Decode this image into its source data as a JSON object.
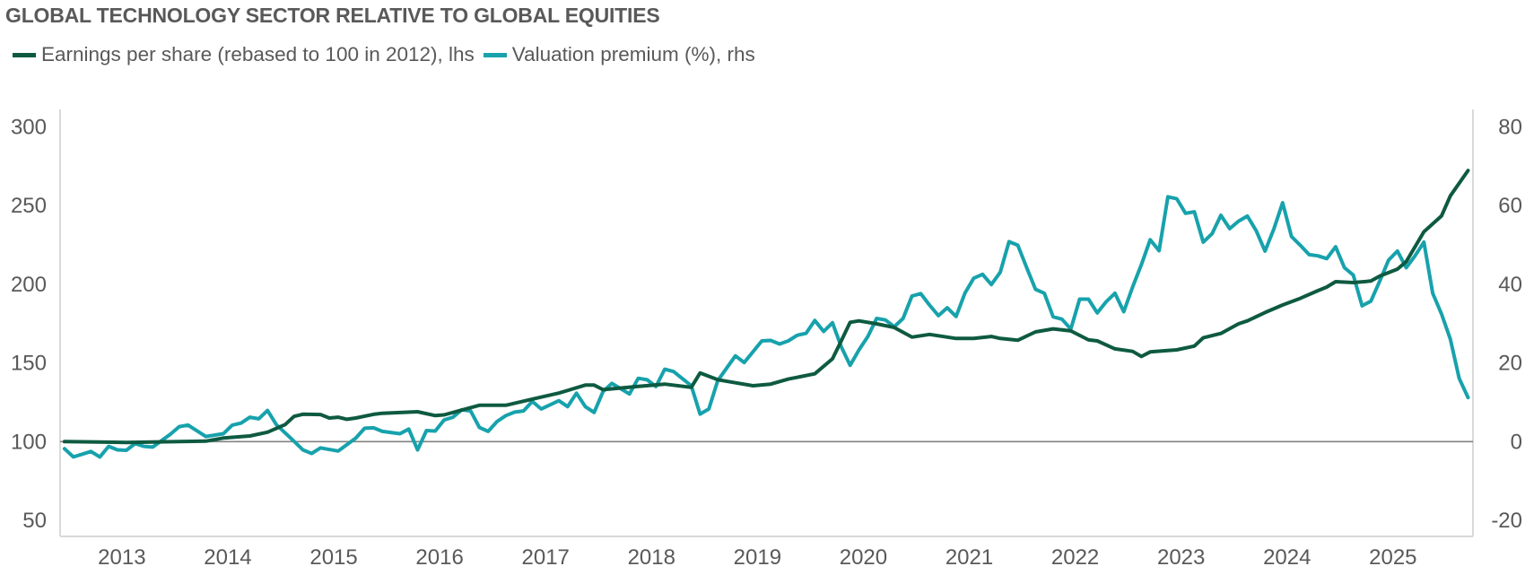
{
  "chart_data": {
    "type": "line",
    "title": "GLOBAL TECHNOLOGY SECTOR RELATIVE TO GLOBAL EQUITIES",
    "xlabel": "",
    "ylabel": "",
    "y2label": "",
    "x_tick_labels": [
      "2013",
      "2014",
      "2015",
      "2016",
      "2017",
      "2018",
      "2019",
      "2020",
      "2021",
      "2022",
      "2023",
      "2024",
      "2025"
    ],
    "ylim": [
      50,
      300
    ],
    "y_ticks": [
      50,
      100,
      150,
      200,
      250,
      300
    ],
    "y2lim": [
      -20,
      80
    ],
    "y2_ticks": [
      -20,
      0,
      20,
      40,
      60,
      80
    ],
    "grid": false,
    "reference_line": {
      "axis": "y",
      "value": 100,
      "color": "#808080"
    },
    "legend_position": "top-left",
    "series": [
      {
        "name": "Earnings per share (rebased to 100 in 2012), lhs",
        "axis": "left",
        "color": "#0e5a41",
        "points": [
          [
            "2012-06",
            100
          ],
          [
            "2013-01",
            99.5
          ],
          [
            "2013-10",
            100.3
          ],
          [
            "2013-12",
            102.3
          ],
          [
            "2014-03",
            103.6
          ],
          [
            "2014-05",
            106
          ],
          [
            "2014-07",
            110.8
          ],
          [
            "2014-08",
            116
          ],
          [
            "2014-09",
            117.4
          ],
          [
            "2014-11",
            117.2
          ],
          [
            "2014-12",
            115
          ],
          [
            "2015-01",
            115.5
          ],
          [
            "2015-02",
            114.2
          ],
          [
            "2015-03",
            115
          ],
          [
            "2015-05",
            117.3
          ],
          [
            "2015-06",
            118
          ],
          [
            "2015-10",
            119
          ],
          [
            "2015-12",
            116.5
          ],
          [
            "2016-01",
            117
          ],
          [
            "2016-05",
            123.1
          ],
          [
            "2016-08",
            123.1
          ],
          [
            "2016-11",
            127
          ],
          [
            "2017-02",
            130.8
          ],
          [
            "2017-05",
            135.9
          ],
          [
            "2017-06",
            135.9
          ],
          [
            "2017-07",
            133
          ],
          [
            "2017-11",
            135.1
          ],
          [
            "2018-02",
            136.5
          ],
          [
            "2018-05",
            134.5
          ],
          [
            "2018-06",
            143.6
          ],
          [
            "2018-08",
            139.3
          ],
          [
            "2018-10",
            137.4
          ],
          [
            "2018-12",
            135.5
          ],
          [
            "2019-02",
            136.5
          ],
          [
            "2019-04",
            139.7
          ],
          [
            "2019-07",
            143.1
          ],
          [
            "2019-09",
            152.6
          ],
          [
            "2019-10",
            164
          ],
          [
            "2019-11",
            175.8
          ],
          [
            "2019-12",
            176.7
          ],
          [
            "2020-02",
            174.8
          ],
          [
            "2020-04",
            172.5
          ],
          [
            "2020-06",
            166.4
          ],
          [
            "2020-08",
            168.1
          ],
          [
            "2020-11",
            165.5
          ],
          [
            "2021-01",
            165.5
          ],
          [
            "2021-03",
            166.8
          ],
          [
            "2021-04",
            165.5
          ],
          [
            "2021-06",
            164.4
          ],
          [
            "2021-08",
            169.7
          ],
          [
            "2021-10",
            171.6
          ],
          [
            "2021-12",
            170.3
          ],
          [
            "2022-02",
            164.6
          ],
          [
            "2022-03",
            164
          ],
          [
            "2022-05",
            158.9
          ],
          [
            "2022-07",
            157.3
          ],
          [
            "2022-08",
            154.1
          ],
          [
            "2022-09",
            157
          ],
          [
            "2022-12",
            158.3
          ],
          [
            "2023-02",
            160.7
          ],
          [
            "2023-03",
            165.9
          ],
          [
            "2023-05",
            168.7
          ],
          [
            "2023-07",
            174.8
          ],
          [
            "2023-08",
            176.7
          ],
          [
            "2023-10",
            182
          ],
          [
            "2023-12",
            186.8
          ],
          [
            "2024-02",
            191
          ],
          [
            "2024-04",
            195.9
          ],
          [
            "2024-05",
            198.2
          ],
          [
            "2024-06",
            201.6
          ],
          [
            "2024-08",
            201
          ],
          [
            "2024-10",
            202
          ],
          [
            "2024-11",
            205.2
          ],
          [
            "2025-01",
            209.6
          ],
          [
            "2025-02",
            214.3
          ],
          [
            "2025-04",
            233.3
          ],
          [
            "2025-06",
            243.4
          ],
          [
            "2025-07",
            256.1
          ],
          [
            "2025-09",
            272.2
          ]
        ]
      },
      {
        "name": "Valuation premium (%), rhs",
        "axis": "right",
        "color": "#17a2ac",
        "points": [
          [
            "2012-06",
            -1.8
          ],
          [
            "2012-07",
            -3.9
          ],
          [
            "2012-09",
            -2.5
          ],
          [
            "2012-10",
            -3.9
          ],
          [
            "2012-11",
            -1.2
          ],
          [
            "2012-12",
            -2.1
          ],
          [
            "2013-01",
            -2.2
          ],
          [
            "2013-02",
            -0.5
          ],
          [
            "2013-03",
            -1.2
          ],
          [
            "2013-04",
            -1.4
          ],
          [
            "2013-06",
            1.9
          ],
          [
            "2013-07",
            3.8
          ],
          [
            "2013-08",
            4.2
          ],
          [
            "2013-10",
            1.3
          ],
          [
            "2013-12",
            2.0
          ],
          [
            "2014-01",
            4.2
          ],
          [
            "2014-02",
            4.7
          ],
          [
            "2014-03",
            6.2
          ],
          [
            "2014-04",
            5.8
          ],
          [
            "2014-05",
            7.9
          ],
          [
            "2014-06",
            4.3
          ],
          [
            "2014-08",
            0.1
          ],
          [
            "2014-09",
            -2.1
          ],
          [
            "2014-10",
            -3.0
          ],
          [
            "2014-11",
            -1.6
          ],
          [
            "2015-01",
            -2.4
          ],
          [
            "2015-03",
            0.9
          ],
          [
            "2015-04",
            3.4
          ],
          [
            "2015-05",
            3.5
          ],
          [
            "2015-06",
            2.6
          ],
          [
            "2015-08",
            2.0
          ],
          [
            "2015-09",
            3.2
          ],
          [
            "2015-10",
            -2.1
          ],
          [
            "2015-11",
            2.8
          ],
          [
            "2015-12",
            2.7
          ],
          [
            "2016-01",
            5.5
          ],
          [
            "2016-02",
            6.2
          ],
          [
            "2016-03",
            8.1
          ],
          [
            "2016-04",
            7.8
          ],
          [
            "2016-05",
            3.6
          ],
          [
            "2016-06",
            2.6
          ],
          [
            "2016-07",
            5.1
          ],
          [
            "2016-08",
            6.6
          ],
          [
            "2016-09",
            7.5
          ],
          [
            "2016-10",
            7.8
          ],
          [
            "2016-11",
            10.2
          ],
          [
            "2016-12",
            8.3
          ],
          [
            "2017-02",
            10.4
          ],
          [
            "2017-03",
            8.9
          ],
          [
            "2017-04",
            12.3
          ],
          [
            "2017-05",
            8.9
          ],
          [
            "2017-06",
            7.4
          ],
          [
            "2017-07",
            12.7
          ],
          [
            "2017-08",
            14.8
          ],
          [
            "2017-10",
            12.1
          ],
          [
            "2017-11",
            16.1
          ],
          [
            "2017-12",
            15.7
          ],
          [
            "2018-01",
            14.0
          ],
          [
            "2018-02",
            18.4
          ],
          [
            "2018-03",
            17.8
          ],
          [
            "2018-05",
            14.2
          ],
          [
            "2018-06",
            7.0
          ],
          [
            "2018-07",
            8.3
          ],
          [
            "2018-08",
            15.5
          ],
          [
            "2018-10",
            21.8
          ],
          [
            "2018-11",
            20.1
          ],
          [
            "2019-01",
            25.6
          ],
          [
            "2019-02",
            25.7
          ],
          [
            "2019-03",
            24.8
          ],
          [
            "2019-04",
            25.6
          ],
          [
            "2019-05",
            27.0
          ],
          [
            "2019-06",
            27.5
          ],
          [
            "2019-07",
            30.8
          ],
          [
            "2019-08",
            28.0
          ],
          [
            "2019-09",
            30.2
          ],
          [
            "2019-10",
            24.1
          ],
          [
            "2019-11",
            19.4
          ],
          [
            "2019-12",
            23.3
          ],
          [
            "2020-01",
            26.7
          ],
          [
            "2020-02",
            31.3
          ],
          [
            "2020-03",
            30.9
          ],
          [
            "2020-04",
            29.2
          ],
          [
            "2020-05",
            31.3
          ],
          [
            "2020-06",
            37.0
          ],
          [
            "2020-07",
            37.6
          ],
          [
            "2020-08",
            34.7
          ],
          [
            "2020-09",
            32.0
          ],
          [
            "2020-10",
            34.0
          ],
          [
            "2020-11",
            31.8
          ],
          [
            "2020-12",
            37.7
          ],
          [
            "2021-01",
            41.5
          ],
          [
            "2021-02",
            42.5
          ],
          [
            "2021-03",
            39.9
          ],
          [
            "2021-04",
            43.0
          ],
          [
            "2021-05",
            50.8
          ],
          [
            "2021-06",
            49.9
          ],
          [
            "2021-07",
            44.2
          ],
          [
            "2021-08",
            38.7
          ],
          [
            "2021-09",
            37.7
          ],
          [
            "2021-10",
            31.7
          ],
          [
            "2021-11",
            31.1
          ],
          [
            "2021-12",
            28.6
          ],
          [
            "2022-01",
            36.2
          ],
          [
            "2022-02",
            36.2
          ],
          [
            "2022-03",
            32.7
          ],
          [
            "2022-04",
            35.5
          ],
          [
            "2022-05",
            37.7
          ],
          [
            "2022-06",
            33.0
          ],
          [
            "2022-07",
            39.3
          ],
          [
            "2022-08",
            45.0
          ],
          [
            "2022-09",
            51.3
          ],
          [
            "2022-10",
            48.5
          ],
          [
            "2022-11",
            62.2
          ],
          [
            "2022-12",
            61.7
          ],
          [
            "2023-01",
            58.0
          ],
          [
            "2023-02",
            58.4
          ],
          [
            "2023-03",
            50.7
          ],
          [
            "2023-04",
            52.8
          ],
          [
            "2023-05",
            57.5
          ],
          [
            "2023-06",
            54.1
          ],
          [
            "2023-07",
            56.0
          ],
          [
            "2023-08",
            57.3
          ],
          [
            "2023-09",
            53.6
          ],
          [
            "2023-10",
            48.4
          ],
          [
            "2023-11",
            54.0
          ],
          [
            "2023-12",
            60.7
          ],
          [
            "2024-01",
            52.1
          ],
          [
            "2024-02",
            49.9
          ],
          [
            "2024-03",
            47.5
          ],
          [
            "2024-04",
            47.2
          ],
          [
            "2024-05",
            46.5
          ],
          [
            "2024-06",
            49.5
          ],
          [
            "2024-07",
            44.2
          ],
          [
            "2024-08",
            42.3
          ],
          [
            "2024-09",
            34.5
          ],
          [
            "2024-10",
            35.7
          ],
          [
            "2024-11",
            40.8
          ],
          [
            "2024-12",
            46.1
          ],
          [
            "2025-01",
            48.4
          ],
          [
            "2025-02",
            44.2
          ],
          [
            "2025-03",
            47.2
          ],
          [
            "2025-04",
            50.7
          ],
          [
            "2025-05",
            37.7
          ],
          [
            "2025-06",
            32.4
          ],
          [
            "2025-07",
            26.0
          ],
          [
            "2025-08",
            16.1
          ],
          [
            "2025-09",
            11.2
          ]
        ]
      }
    ]
  }
}
